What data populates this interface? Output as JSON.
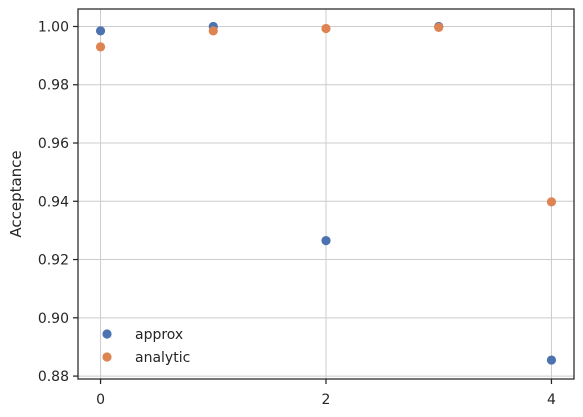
{
  "chart_data": {
    "type": "scatter",
    "title": "",
    "xlabel": "",
    "ylabel": "Acceptance",
    "xlim": [
      -0.2,
      4.2
    ],
    "ylim": [
      0.879,
      1.006
    ],
    "xticks": [
      0,
      2,
      4
    ],
    "xtick_labels": [
      "0",
      "2",
      "4"
    ],
    "yticks": [
      0.88,
      0.9,
      0.92,
      0.94,
      0.96,
      0.98,
      1.0
    ],
    "ytick_labels": [
      "0.88",
      "0.90",
      "0.92",
      "0.94",
      "0.96",
      "0.98",
      "1.00"
    ],
    "grid": true,
    "legend_position": "lower-left",
    "series": [
      {
        "name": "approx",
        "color": "#4c72b0",
        "x": [
          0,
          1,
          2,
          3,
          4
        ],
        "y": [
          0.9985,
          1.0,
          0.9265,
          1.0,
          0.8855
        ]
      },
      {
        "name": "analytic",
        "color": "#dd8452",
        "x": [
          0,
          1,
          2,
          3,
          4
        ],
        "y": [
          0.993,
          0.9985,
          0.9993,
          0.9997,
          0.9398
        ]
      }
    ]
  }
}
